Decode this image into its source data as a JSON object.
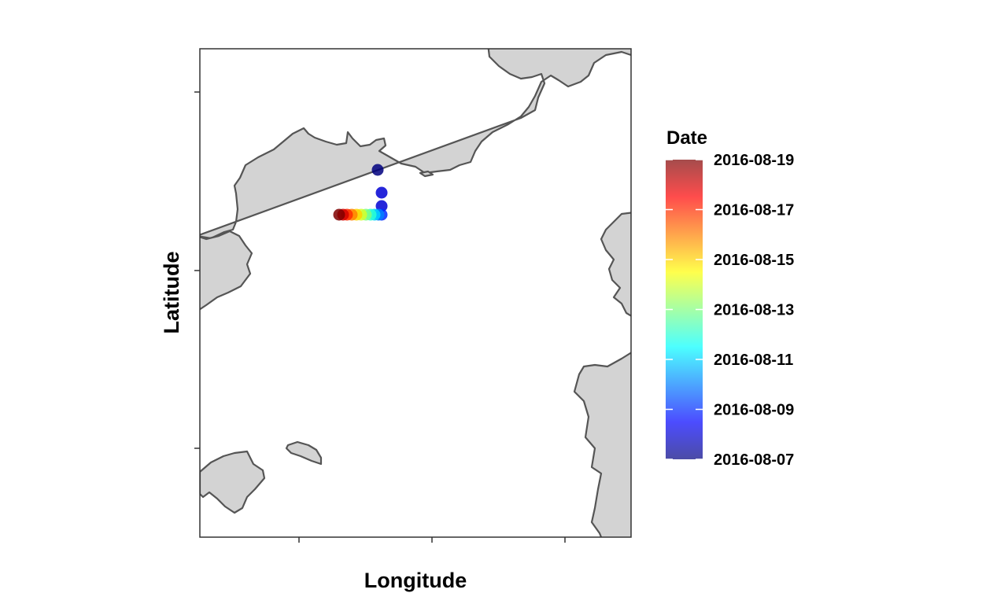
{
  "map": {
    "x_axis_title": "Longitude",
    "y_axis_title": "Latitude",
    "land_color": "#d3d3d3",
    "coast_color": "#555555",
    "water_color": "#ffffff"
  },
  "legend": {
    "title": "Date",
    "labels": [
      "2016-08-19",
      "2016-08-17",
      "2016-08-15",
      "2016-08-13",
      "2016-08-11",
      "2016-08-09",
      "2016-08-07"
    ],
    "colors": [
      "#7f0000",
      "#ff0000",
      "#ff7f00",
      "#ffff00",
      "#7fff7f",
      "#00ffff",
      "#007fff",
      "#0000ff",
      "#00007f"
    ],
    "color_scale": "jet"
  },
  "track": {
    "points": [
      {
        "date": "2016-08-07"
      },
      {
        "date": "2016-08-08"
      },
      {
        "date": "2016-08-08"
      },
      {
        "date": "2016-08-09"
      },
      {
        "date": "2016-08-10"
      },
      {
        "date": "2016-08-11"
      },
      {
        "date": "2016-08-12"
      },
      {
        "date": "2016-08-13"
      },
      {
        "date": "2016-08-14"
      },
      {
        "date": "2016-08-15"
      },
      {
        "date": "2016-08-16"
      },
      {
        "date": "2016-08-17"
      },
      {
        "date": "2016-08-18"
      },
      {
        "date": "2016-08-19"
      }
    ]
  }
}
